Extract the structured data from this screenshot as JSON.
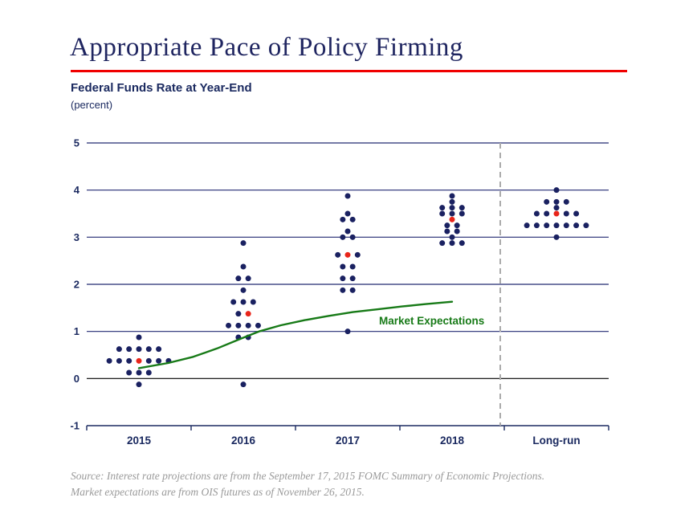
{
  "header": {
    "title": "Appropriate Pace of Policy Firming"
  },
  "subtitle": {
    "title": "Federal Funds Rate at Year-End",
    "units": "(percent)"
  },
  "colors": {
    "title_navy": "#1f2560",
    "accent_red_rule": "#f00000",
    "dot_navy": "#1a2161",
    "median_red": "#e8251a",
    "grid_navy": "#232a72",
    "zero_line_black": "#000000",
    "axis_navy": "#1b2a60",
    "market_green": "#177a17",
    "separator_gray": "#ababab",
    "source_gray": "#9a9a9a"
  },
  "y_axis": {
    "ticks": [
      5,
      4,
      3,
      2,
      1,
      0,
      -1
    ]
  },
  "x_axis": {
    "categories": [
      "2015",
      "2016",
      "2017",
      "2018",
      "Long-run"
    ]
  },
  "market_expectations": {
    "label": "Market Expectations"
  },
  "source": {
    "line1": "Source: Interest rate projections are from the September 17, 2015 FOMC Summary of Economic Projections.",
    "line2": "Market expectations are from OIS futures as of November 26, 2015."
  },
  "chart_data": {
    "type": "scatter",
    "subtype": "FOMC dot plot with market-expectations line",
    "title": "Federal Funds Rate at Year-End",
    "ylabel": "(percent)",
    "ylim": [
      -1,
      5
    ],
    "yticks": [
      5,
      4,
      3,
      2,
      1,
      0,
      -1
    ],
    "grid": "horizontal lines at integers; zero line black; dashed vertical separator before Long-run",
    "categories": [
      "2015",
      "2016",
      "2017",
      "2018",
      "Long-run"
    ],
    "clusters": [
      {
        "category": "2015",
        "median": 0.375,
        "rows": [
          {
            "value": 0.875,
            "count": 1
          },
          {
            "value": 0.625,
            "count": 5
          },
          {
            "value": 0.375,
            "count": 7,
            "median_index": 3
          },
          {
            "value": 0.125,
            "count": 3
          },
          {
            "value": -0.125,
            "count": 1
          }
        ]
      },
      {
        "category": "2016",
        "median": 1.375,
        "rows": [
          {
            "value": 2.875,
            "count": 1
          },
          {
            "value": 2.375,
            "count": 1
          },
          {
            "value": 2.125,
            "count": 2
          },
          {
            "value": 1.875,
            "count": 1
          },
          {
            "value": 1.625,
            "count": 3
          },
          {
            "value": 1.375,
            "count": 2,
            "median_index": 1
          },
          {
            "value": 1.125,
            "count": 4
          },
          {
            "value": 0.875,
            "count": 2
          },
          {
            "value": -0.125,
            "count": 1
          }
        ]
      },
      {
        "category": "2017",
        "median": 2.625,
        "rows": [
          {
            "value": 3.875,
            "count": 1
          },
          {
            "value": 3.5,
            "count": 1
          },
          {
            "value": 3.375,
            "count": 2
          },
          {
            "value": 3.125,
            "count": 1
          },
          {
            "value": 3,
            "count": 2
          },
          {
            "value": 2.625,
            "count": 3,
            "median_index": 1
          },
          {
            "value": 2.375,
            "count": 2
          },
          {
            "value": 2.125,
            "count": 2
          },
          {
            "value": 1.875,
            "count": 2
          },
          {
            "value": 1,
            "count": 1
          }
        ]
      },
      {
        "category": "2018",
        "median": 3.375,
        "rows": [
          {
            "value": 3.875,
            "count": 1
          },
          {
            "value": 3.75,
            "count": 1
          },
          {
            "value": 3.625,
            "count": 3
          },
          {
            "value": 3.5,
            "count": 3
          },
          {
            "value": 3.375,
            "count": 1,
            "median_index": 0
          },
          {
            "value": 3.25,
            "count": 2
          },
          {
            "value": 3.125,
            "count": 2
          },
          {
            "value": 3,
            "count": 1
          },
          {
            "value": 2.875,
            "count": 3
          }
        ]
      },
      {
        "category": "Long-run",
        "median": 3.5,
        "rows": [
          {
            "value": 4,
            "count": 1
          },
          {
            "value": 3.75,
            "count": 3
          },
          {
            "value": 3.625,
            "count": 1
          },
          {
            "value": 3.5,
            "count": 5,
            "median_index": 2
          },
          {
            "value": 3.25,
            "count": 7
          },
          {
            "value": 3,
            "count": 1
          }
        ]
      }
    ],
    "market_expectations_line": {
      "label": "Market Expectations",
      "x_units": "category index (0 = 2015 center, 3 = 2018 center)",
      "points": [
        [
          0,
          0.22
        ],
        [
          0.28,
          0.33
        ],
        [
          0.52,
          0.46
        ],
        [
          0.75,
          0.64
        ],
        [
          0.98,
          0.85
        ],
        [
          1.15,
          1.0
        ],
        [
          1.36,
          1.13
        ],
        [
          1.59,
          1.24
        ],
        [
          1.82,
          1.33
        ],
        [
          2.05,
          1.41
        ],
        [
          2.29,
          1.47
        ],
        [
          2.52,
          1.53
        ],
        [
          2.75,
          1.58
        ],
        [
          3.0,
          1.63
        ]
      ]
    },
    "legend_position": "label next to line end, inside plot",
    "separator_x": "between 2018 and Long-run"
  }
}
